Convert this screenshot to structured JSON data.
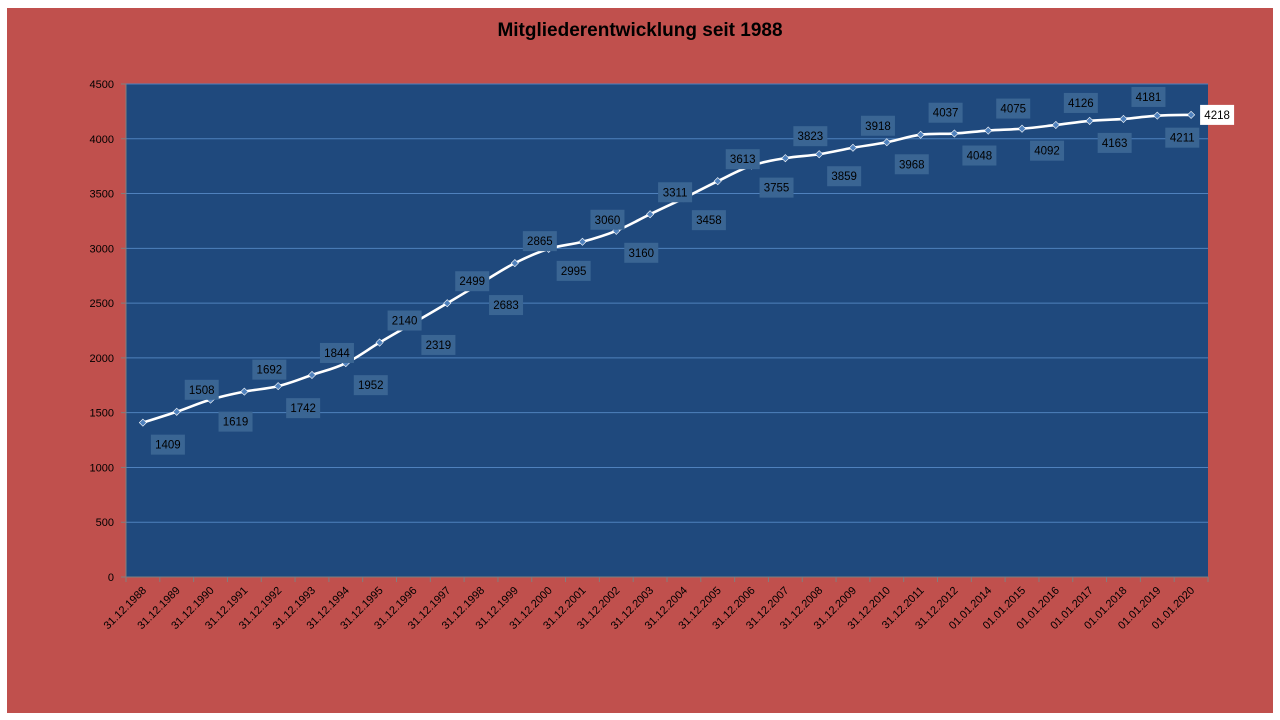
{
  "colors": {
    "outer_background": "#c0504d",
    "plot_background": "#1f497d",
    "gridline": "#4f81bd",
    "line": "#ffffff",
    "marker": "#4f81bd",
    "label_box": "#3a6593",
    "last_label_box": "#ffffff"
  },
  "chart_data": {
    "type": "line",
    "title": "Mitgliederentwicklung seit 1988",
    "xlabel": "",
    "ylabel": "",
    "ylim": [
      0,
      4500
    ],
    "yticks": [
      0,
      500,
      1000,
      1500,
      2000,
      2500,
      3000,
      3500,
      4000,
      4500
    ],
    "grid": true,
    "legend": "none",
    "categories": [
      "31.12.1988",
      "31.12.1989",
      "31.12.1990",
      "31.12.1991",
      "31.12.1992",
      "31.12.1993",
      "31.12.1994",
      "31.12.1995",
      "31.12.1996",
      "31.12.1997",
      "31.12.1998",
      "31.12.1999",
      "31.12.2000",
      "31.12.2001",
      "31.12.2002",
      "31.12.2003",
      "31.12.2004",
      "31.12.2005",
      "31.12.2006",
      "31.12.2007",
      "31.12.2008",
      "31.12.2009",
      "31.12.2010",
      "31.12.2011",
      "31.12.2012",
      "01.01.2014",
      "01.01.2015",
      "01.01.2016",
      "01.01.2017",
      "01.01.2018",
      "01.01.2019",
      "01.01.2020"
    ],
    "series": [
      {
        "values": [
          1409,
          1508,
          1619,
          1692,
          1742,
          1844,
          1952,
          2140,
          2319,
          2499,
          2683,
          2865,
          2995,
          3060,
          3160,
          3311,
          3458,
          3613,
          3755,
          3823,
          3859,
          3918,
          3968,
          4037,
          4048,
          4075,
          4092,
          4126,
          4163,
          4181,
          4211,
          4218
        ]
      }
    ]
  }
}
